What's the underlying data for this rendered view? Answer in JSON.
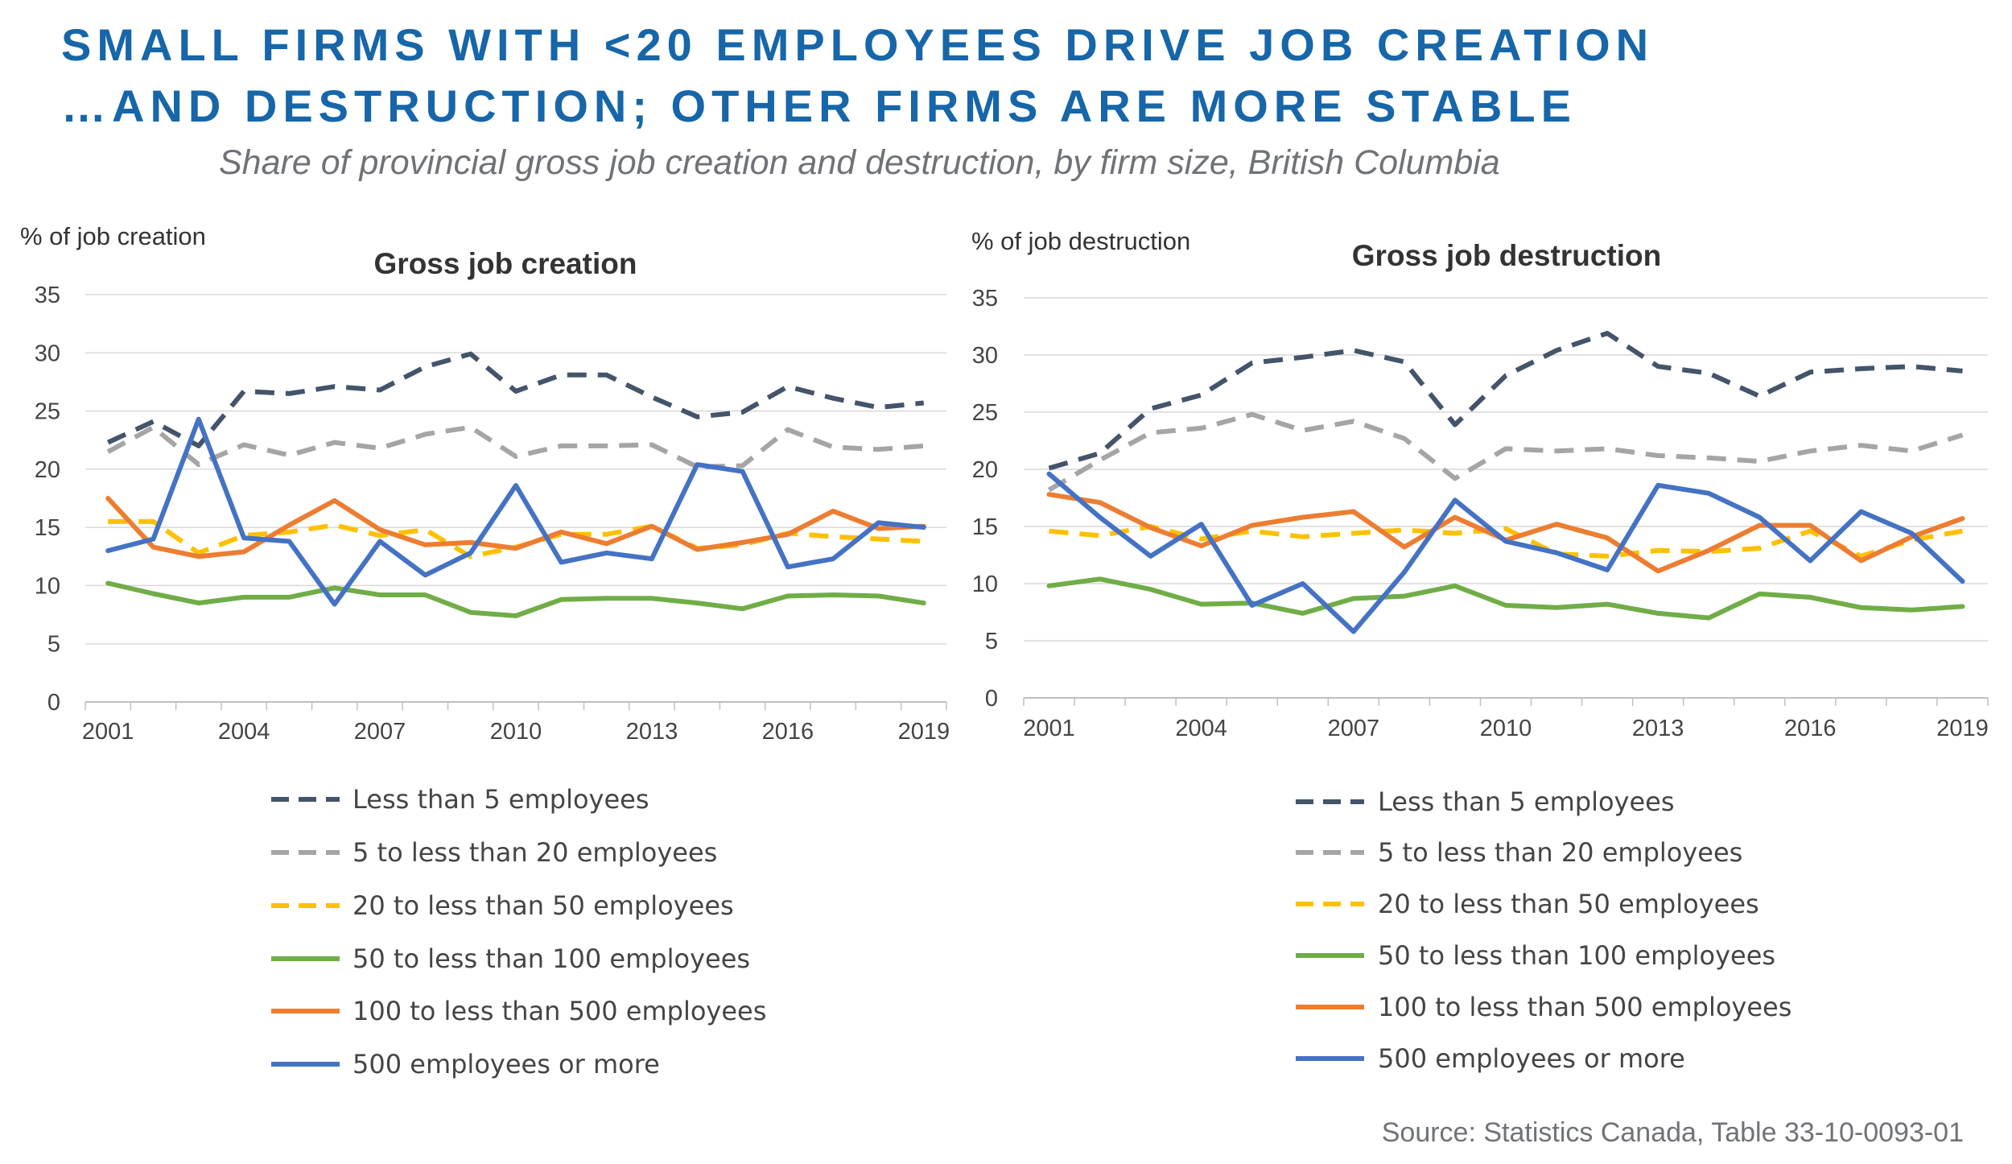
{
  "header": {
    "title_line1": "SMALL FIRMS WITH <20 EMPLOYEES DRIVE JOB CREATION",
    "title_line2": "…AND DESTRUCTION; OTHER FIRMS ARE MORE STABLE",
    "subtitle": "Share of provincial gross job creation and destruction, by firm size, British Columbia",
    "source": "Source: Statistics Canada, Table 33-10-0093-01"
  },
  "chart_data": [
    {
      "type": "line",
      "title": "Gross job creation",
      "ylabel": "% of job creation",
      "xlabel": "",
      "ylim": [
        0,
        35
      ],
      "yticks": [
        0,
        5,
        10,
        15,
        20,
        25,
        30,
        35
      ],
      "x": [
        2001,
        2002,
        2003,
        2004,
        2005,
        2006,
        2007,
        2008,
        2009,
        2010,
        2011,
        2012,
        2013,
        2014,
        2015,
        2016,
        2017,
        2018,
        2019
      ],
      "xticks": [
        "2001",
        "2004",
        "2007",
        "2010",
        "2013",
        "2016",
        "2019"
      ],
      "series": [
        {
          "name": "Less than 5 employees",
          "color": "#44546a",
          "dash": "dash",
          "values": [
            22.3,
            24.1,
            22.0,
            26.7,
            26.5,
            27.1,
            26.8,
            28.8,
            29.9,
            26.7,
            28.1,
            28.1,
            26.2,
            24.5,
            24.9,
            27.1,
            26.1,
            25.3,
            25.7
          ]
        },
        {
          "name": "5 to less than 20 employees",
          "color": "#a5a5a5",
          "dash": "dash",
          "values": [
            21.5,
            23.6,
            20.4,
            22.1,
            21.2,
            22.3,
            21.8,
            23.0,
            23.6,
            21.1,
            22.0,
            22.0,
            22.1,
            20.2,
            20.3,
            23.4,
            21.9,
            21.7,
            22.0
          ]
        },
        {
          "name": "20 to less than 50 employees",
          "color": "#ffc000",
          "dash": "dash",
          "values": [
            15.5,
            15.5,
            12.8,
            14.3,
            14.6,
            15.2,
            14.3,
            14.8,
            12.5,
            13.3,
            14.4,
            14.4,
            15.1,
            13.2,
            13.5,
            14.5,
            14.2,
            14.0,
            13.8
          ]
        },
        {
          "name": "50 to less than 100 employees",
          "color": "#70ad47",
          "dash": "solid",
          "values": [
            10.2,
            9.3,
            8.5,
            9.0,
            9.0,
            9.8,
            9.2,
            9.2,
            7.7,
            7.4,
            8.8,
            8.9,
            8.9,
            8.5,
            8.0,
            9.1,
            9.2,
            9.1,
            8.5
          ]
        },
        {
          "name": "100 to less than 500 employees",
          "color": "#ed7d31",
          "dash": "solid",
          "values": [
            17.5,
            13.3,
            12.5,
            12.9,
            15.2,
            17.3,
            14.8,
            13.5,
            13.7,
            13.2,
            14.6,
            13.6,
            15.1,
            13.1,
            13.7,
            14.4,
            16.4,
            14.9,
            15.1
          ]
        },
        {
          "name": "500 employees or more",
          "color": "#4472c4",
          "dash": "solid",
          "values": [
            13.0,
            14.0,
            24.3,
            14.1,
            13.8,
            8.4,
            13.8,
            10.9,
            12.8,
            18.6,
            12.0,
            12.8,
            12.3,
            20.4,
            19.8,
            11.6,
            12.3,
            15.4,
            15.0
          ]
        }
      ]
    },
    {
      "type": "line",
      "title": "Gross job destruction",
      "ylabel": "% of job destruction",
      "xlabel": "",
      "ylim": [
        0,
        35
      ],
      "yticks": [
        0,
        5,
        10,
        15,
        20,
        25,
        30,
        35
      ],
      "x": [
        2001,
        2002,
        2003,
        2004,
        2005,
        2006,
        2007,
        2008,
        2009,
        2010,
        2011,
        2012,
        2013,
        2014,
        2015,
        2016,
        2017,
        2018,
        2019
      ],
      "xticks": [
        "2001",
        "2004",
        "2007",
        "2010",
        "2013",
        "2016",
        "2019"
      ],
      "series": [
        {
          "name": "Less than 5 employees",
          "color": "#44546a",
          "dash": "dash",
          "values": [
            20.1,
            21.4,
            25.3,
            26.5,
            29.3,
            29.8,
            30.4,
            29.4,
            23.9,
            28.2,
            30.4,
            31.9,
            29.0,
            28.4,
            26.4,
            28.5,
            28.8,
            29.0,
            28.6
          ]
        },
        {
          "name": "5 to less than 20 employees",
          "color": "#a5a5a5",
          "dash": "dash",
          "values": [
            18.2,
            20.8,
            23.2,
            23.6,
            24.8,
            23.4,
            24.2,
            22.7,
            19.2,
            21.8,
            21.6,
            21.8,
            21.2,
            21.0,
            20.7,
            21.6,
            22.1,
            21.6,
            23.0
          ]
        },
        {
          "name": "20 to less than 50 employees",
          "color": "#ffc000",
          "dash": "dash",
          "values": [
            14.6,
            14.2,
            15.0,
            13.9,
            14.6,
            14.1,
            14.4,
            14.7,
            14.4,
            14.8,
            12.6,
            12.4,
            12.9,
            12.8,
            13.1,
            14.6,
            12.4,
            13.8,
            14.6
          ]
        },
        {
          "name": "50 to less than 100 employees",
          "color": "#70ad47",
          "dash": "solid",
          "values": [
            9.8,
            10.4,
            9.5,
            8.2,
            8.3,
            7.4,
            8.7,
            8.9,
            9.8,
            8.1,
            7.9,
            8.2,
            7.4,
            7.0,
            9.1,
            8.8,
            7.9,
            7.7,
            8.0
          ]
        },
        {
          "name": "100 to less than 500 employees",
          "color": "#ed7d31",
          "dash": "solid",
          "values": [
            17.8,
            17.1,
            14.9,
            13.3,
            15.1,
            15.8,
            16.3,
            13.2,
            15.8,
            13.8,
            15.2,
            14.0,
            11.1,
            12.9,
            15.1,
            15.1,
            12.0,
            14.1,
            15.7
          ]
        },
        {
          "name": "500 employees or more",
          "color": "#4472c4",
          "dash": "solid",
          "values": [
            19.6,
            15.8,
            12.4,
            15.2,
            8.1,
            10.0,
            5.8,
            11.0,
            17.3,
            13.7,
            12.7,
            11.2,
            18.6,
            17.9,
            15.8,
            12.0,
            16.3,
            14.4,
            10.2
          ]
        }
      ]
    }
  ]
}
